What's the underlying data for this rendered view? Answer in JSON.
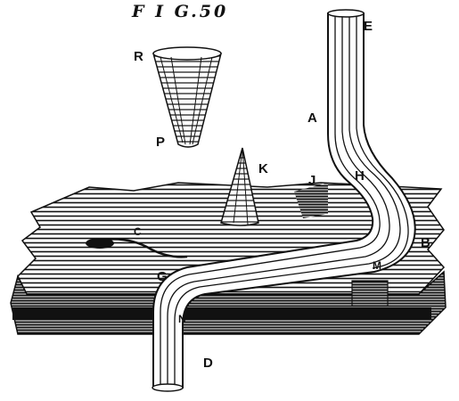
{
  "figure": {
    "caption": "F I G.50",
    "labels": {
      "E": "E",
      "R": "R",
      "P": "P",
      "A": "A",
      "K": "K",
      "J": "J",
      "H": "H",
      "C": "C",
      "B": "B",
      "M": "M",
      "G": "G",
      "N": "N",
      "D": "D"
    }
  },
  "colors": {
    "ink": "#111111",
    "paper": "#ffffff"
  }
}
